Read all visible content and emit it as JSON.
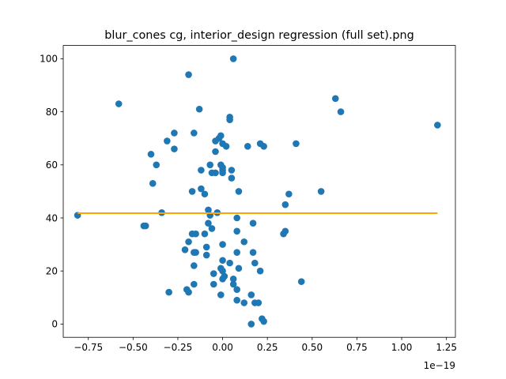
{
  "chart_data": {
    "type": "scatter",
    "title": "blur_cones cg, interior_design regression (full set).png",
    "xlabel": "",
    "ylabel": "",
    "x_offset_label": "1e−19",
    "xlim": [
      -0.89,
      1.3
    ],
    "ylim": [
      -5,
      105
    ],
    "x_ticks": [
      -0.75,
      -0.5,
      -0.25,
      0.0,
      0.25,
      0.5,
      0.75,
      1.0,
      1.25
    ],
    "x_tick_labels": [
      "−0.75",
      "−0.50",
      "−0.25",
      "0.00",
      "0.25",
      "0.50",
      "0.75",
      "1.00",
      "1.25"
    ],
    "y_ticks": [
      0,
      20,
      40,
      60,
      80,
      100
    ],
    "y_tick_labels": [
      "0",
      "20",
      "40",
      "60",
      "80",
      "100"
    ],
    "grid": false,
    "colors": {
      "points": "#1f77b4",
      "line": "#ffa500"
    },
    "series": [
      {
        "kind": "scatter",
        "points": [
          [
            -0.81,
            41
          ],
          [
            -0.58,
            83
          ],
          [
            -0.19,
            94
          ],
          [
            0.06,
            100
          ],
          [
            -0.13,
            81
          ],
          [
            0.04,
            78
          ],
          [
            0.04,
            77
          ],
          [
            -0.31,
            69
          ],
          [
            -0.27,
            72
          ],
          [
            -0.16,
            72
          ],
          [
            -0.27,
            66
          ],
          [
            -0.4,
            64
          ],
          [
            -0.37,
            60
          ],
          [
            -0.39,
            53
          ],
          [
            -0.04,
            69
          ],
          [
            -0.02,
            70
          ],
          [
            -0.01,
            71
          ],
          [
            -0.04,
            65
          ],
          [
            0.0,
            68
          ],
          [
            0.02,
            67
          ],
          [
            0.14,
            67
          ],
          [
            0.21,
            68
          ],
          [
            0.23,
            67
          ],
          [
            0.41,
            68
          ],
          [
            0.63,
            85
          ],
          [
            0.66,
            80
          ],
          [
            1.2,
            75
          ],
          [
            -0.12,
            58
          ],
          [
            -0.07,
            60
          ],
          [
            -0.06,
            57
          ],
          [
            -0.04,
            57
          ],
          [
            -0.01,
            60
          ],
          [
            0.0,
            59
          ],
          [
            0.0,
            58
          ],
          [
            0.0,
            57
          ],
          [
            0.05,
            58
          ],
          [
            0.05,
            55
          ],
          [
            -0.12,
            51
          ],
          [
            -0.1,
            49
          ],
          [
            -0.17,
            50
          ],
          [
            0.09,
            50
          ],
          [
            0.37,
            49
          ],
          [
            0.55,
            50
          ],
          [
            0.35,
            45
          ],
          [
            -0.34,
            42
          ],
          [
            -0.08,
            43
          ],
          [
            -0.03,
            42
          ],
          [
            -0.07,
            41
          ],
          [
            -0.08,
            38
          ],
          [
            -0.06,
            36
          ],
          [
            0.08,
            40
          ],
          [
            0.17,
            38
          ],
          [
            0.08,
            35
          ],
          [
            -0.44,
            37
          ],
          [
            -0.43,
            37
          ],
          [
            -0.17,
            34
          ],
          [
            -0.15,
            34
          ],
          [
            -0.1,
            34
          ],
          [
            0.34,
            34
          ],
          [
            0.35,
            35
          ],
          [
            -0.19,
            31
          ],
          [
            -0.21,
            28
          ],
          [
            -0.15,
            27
          ],
          [
            -0.16,
            27
          ],
          [
            -0.09,
            29
          ],
          [
            -0.09,
            26
          ],
          [
            0.0,
            30
          ],
          [
            0.12,
            31
          ],
          [
            0.08,
            27
          ],
          [
            0.17,
            27
          ],
          [
            0.0,
            24
          ],
          [
            0.04,
            23
          ],
          [
            0.18,
            23
          ],
          [
            -0.16,
            22
          ],
          [
            -0.05,
            19
          ],
          [
            -0.01,
            21
          ],
          [
            0.0,
            20
          ],
          [
            0.09,
            21
          ],
          [
            0.21,
            20
          ],
          [
            0.0,
            17
          ],
          [
            0.01,
            18
          ],
          [
            0.06,
            17
          ],
          [
            -0.05,
            15
          ],
          [
            -0.16,
            15
          ],
          [
            0.06,
            15
          ],
          [
            0.08,
            13
          ],
          [
            -0.3,
            12
          ],
          [
            -0.2,
            13
          ],
          [
            -0.19,
            12
          ],
          [
            -0.01,
            11
          ],
          [
            0.16,
            11
          ],
          [
            0.12,
            8
          ],
          [
            0.18,
            8
          ],
          [
            0.2,
            8
          ],
          [
            0.08,
            9
          ],
          [
            0.44,
            16
          ],
          [
            0.16,
            0
          ],
          [
            0.22,
            2
          ],
          [
            0.23,
            1
          ]
        ]
      },
      {
        "kind": "line",
        "x": [
          -0.81,
          1.2
        ],
        "y": [
          41.8,
          41.8
        ]
      }
    ]
  }
}
